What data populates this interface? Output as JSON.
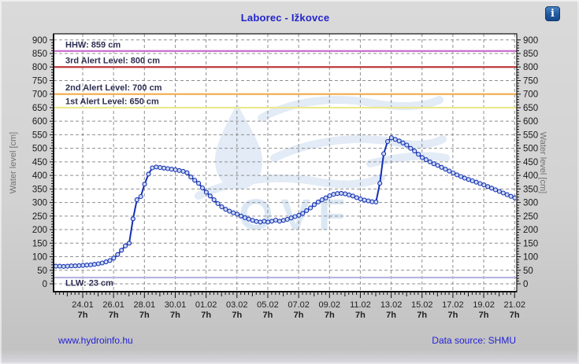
{
  "header": {
    "title": "Laborec - Ižkovce",
    "info_icon": "i"
  },
  "footer": {
    "site_link": "www.hydroinfo.hu",
    "data_source": "Data source: SHMU"
  },
  "colors": {
    "title_text": "#2323cd",
    "series_line": "#1430b4",
    "marker_fill": "#ccd9f2",
    "grid": "#8f8f8f",
    "axis": "#111111",
    "ref_label_text": "#2e2e52",
    "watermark_shape": "#cfdff1",
    "watermark_text": "#c4daee",
    "axis_title_text": "#737373"
  },
  "chart_data": {
    "type": "line",
    "title": "Laborec - Ižkovce",
    "ylabel": "Water level [cm]",
    "y_axis": {
      "label_left": "Water level [cm]",
      "label_right": "Water level [cm]",
      "min": 0,
      "max": 900,
      "tick_step": 50
    },
    "x_axis": {
      "tick_dates": [
        "24.01",
        "26.01",
        "28.01",
        "30.01",
        "01.02",
        "03.02",
        "05.02",
        "07.02",
        "09.02",
        "11.02",
        "13.02",
        "15.02",
        "17.02",
        "19.02",
        "21.02"
      ],
      "tick_sub": "7h"
    },
    "reference_lines": [
      {
        "name": "hhw",
        "label": "HHW: 859 cm",
        "value": 859,
        "color": "#cb70d0"
      },
      {
        "name": "alert-3rd",
        "label": "3rd Alert Level: 800 cm",
        "value": 800,
        "color": "#bb3a3a"
      },
      {
        "name": "alert-2nd",
        "label": "2nd Alert Level: 700 cm",
        "value": 700,
        "color": "#f0ab4a"
      },
      {
        "name": "alert-1st",
        "label": "1st Alert Level: 650 cm",
        "value": 650,
        "color": "#ece88e"
      },
      {
        "name": "llw",
        "label": "LLW: 23 cm",
        "value": 23,
        "color": "#b4b4e2"
      }
    ],
    "watermark_text": "OVF",
    "series": [
      {
        "name": "water-level",
        "unit": "cm",
        "start": "22.01 13h",
        "interval_hours": 6,
        "values": [
          65,
          65,
          64,
          65,
          66,
          66,
          67,
          68,
          69,
          70,
          72,
          74,
          77,
          81,
          86,
          95,
          108,
          124,
          140,
          150,
          240,
          310,
          322,
          368,
          405,
          428,
          431,
          429,
          427,
          425,
          423,
          421,
          418,
          415,
          410,
          394,
          382,
          371,
          354,
          338,
          324,
          310,
          296,
          284,
          275,
          268,
          262,
          257,
          250,
          244,
          239,
          234,
          230,
          228,
          231,
          228,
          231,
          235,
          231,
          234,
          238,
          243,
          248,
          253,
          260,
          270,
          280,
          292,
          302,
          310,
          317,
          325,
          330,
          333,
          334,
          332,
          328,
          324,
          318,
          313,
          309,
          306,
          303,
          302,
          371,
          480,
          525,
          539,
          533,
          527,
          520,
          512,
          500,
          490,
          478,
          466,
          458,
          450,
          443,
          437,
          430,
          423,
          416,
          409,
          402,
          396,
          390,
          385,
          380,
          375,
          370,
          365,
          359,
          353,
          347,
          341,
          335,
          329,
          323,
          317,
          313
        ]
      }
    ]
  }
}
